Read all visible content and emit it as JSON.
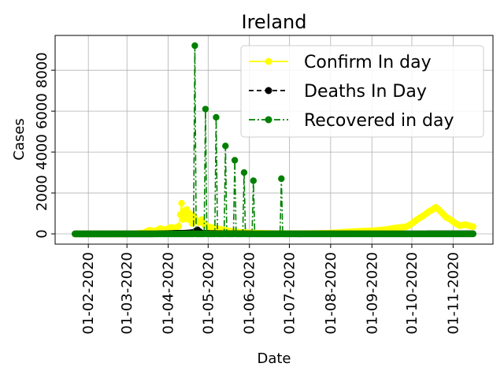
{
  "chart_data": {
    "type": "line",
    "title": "Ireland",
    "xlabel": "Date",
    "ylabel": "Cases",
    "grid": true,
    "legend_position": "top-right",
    "x_ticks": [
      "01-02-2020",
      "01-03-2020",
      "01-04-2020",
      "01-05-2020",
      "01-06-2020",
      "01-07-2020",
      "01-08-2020",
      "01-09-2020",
      "01-10-2020",
      "01-11-2020"
    ],
    "y_ticks": [
      0,
      2000,
      4000,
      6000,
      8000
    ],
    "y_tick_labels": [
      "0",
      "2000",
      "4000",
      "6000",
      "8000"
    ],
    "x_range": [
      "2020-01-22",
      "2020-11-16"
    ],
    "ylim": [
      -500,
      9700
    ],
    "series": [
      {
        "name": "Confirm In day",
        "color": "#ffff00",
        "linestyle": "solid",
        "marker": "circle",
        "points": [
          [
            "2020-01-22",
            0
          ],
          [
            "2020-02-29",
            0
          ],
          [
            "2020-03-05",
            5
          ],
          [
            "2020-03-10",
            20
          ],
          [
            "2020-03-14",
            60
          ],
          [
            "2020-03-18",
            180
          ],
          [
            "2020-03-22",
            120
          ],
          [
            "2020-03-26",
            260
          ],
          [
            "2020-03-30",
            200
          ],
          [
            "2020-04-03",
            320
          ],
          [
            "2020-04-06",
            280
          ],
          [
            "2020-04-09",
            380
          ],
          [
            "2020-04-11",
            1500
          ],
          [
            "2020-04-12",
            700
          ],
          [
            "2020-04-13",
            1100
          ],
          [
            "2020-04-14",
            850
          ],
          [
            "2020-04-15",
            1200
          ],
          [
            "2020-04-16",
            700
          ],
          [
            "2020-04-17",
            1000
          ],
          [
            "2020-04-18",
            780
          ],
          [
            "2020-04-19",
            500
          ],
          [
            "2020-04-20",
            900
          ],
          [
            "2020-04-22",
            650
          ],
          [
            "2020-04-24",
            550
          ],
          [
            "2020-04-26",
            700
          ],
          [
            "2020-04-28",
            450
          ],
          [
            "2020-05-01",
            350
          ],
          [
            "2020-05-04",
            300
          ],
          [
            "2020-05-08",
            250
          ],
          [
            "2020-05-12",
            200
          ],
          [
            "2020-05-16",
            150
          ],
          [
            "2020-05-22",
            100
          ],
          [
            "2020-05-28",
            70
          ],
          [
            "2020-06-05",
            40
          ],
          [
            "2020-06-15",
            20
          ],
          [
            "2020-07-01",
            15
          ],
          [
            "2020-07-20",
            20
          ],
          [
            "2020-08-01",
            40
          ],
          [
            "2020-08-10",
            80
          ],
          [
            "2020-08-20",
            120
          ],
          [
            "2020-09-01",
            150
          ],
          [
            "2020-09-10",
            200
          ],
          [
            "2020-09-20",
            300
          ],
          [
            "2020-09-27",
            350
          ],
          [
            "2020-10-01",
            500
          ],
          [
            "2020-10-05",
            700
          ],
          [
            "2020-10-10",
            900
          ],
          [
            "2020-10-14",
            1100
          ],
          [
            "2020-10-17",
            1200
          ],
          [
            "2020-10-19",
            1300
          ],
          [
            "2020-10-21",
            1200
          ],
          [
            "2020-10-24",
            1000
          ],
          [
            "2020-10-27",
            800
          ],
          [
            "2020-10-30",
            700
          ],
          [
            "2020-11-02",
            550
          ],
          [
            "2020-11-06",
            400
          ],
          [
            "2020-11-10",
            450
          ],
          [
            "2020-11-13",
            400
          ],
          [
            "2020-11-16",
            350
          ]
        ]
      },
      {
        "name": "Deaths In Day",
        "color": "#000000",
        "linestyle": "dashed",
        "marker": "circle",
        "points": [
          [
            "2020-01-22",
            0
          ],
          [
            "2020-03-20",
            0
          ],
          [
            "2020-03-28",
            10
          ],
          [
            "2020-04-05",
            25
          ],
          [
            "2020-04-10",
            35
          ],
          [
            "2020-04-15",
            40
          ],
          [
            "2020-04-20",
            70
          ],
          [
            "2020-04-23",
            200
          ],
          [
            "2020-04-26",
            30
          ],
          [
            "2020-05-01",
            25
          ],
          [
            "2020-05-10",
            15
          ],
          [
            "2020-05-20",
            10
          ],
          [
            "2020-06-01",
            5
          ],
          [
            "2020-07-01",
            2
          ],
          [
            "2020-09-01",
            2
          ],
          [
            "2020-10-15",
            5
          ],
          [
            "2020-11-16",
            5
          ]
        ]
      },
      {
        "name": "Recovered in day",
        "color": "#008000",
        "linestyle": "dashdot",
        "marker": "circle",
        "points": [
          [
            "2020-01-22",
            0
          ],
          [
            "2020-04-20",
            0
          ],
          [
            "2020-04-21",
            9200
          ],
          [
            "2020-04-22",
            0
          ],
          [
            "2020-04-28",
            0
          ],
          [
            "2020-04-29",
            6100
          ],
          [
            "2020-04-30",
            0
          ],
          [
            "2020-05-06",
            0
          ],
          [
            "2020-05-07",
            5700
          ],
          [
            "2020-05-08",
            0
          ],
          [
            "2020-05-13",
            0
          ],
          [
            "2020-05-14",
            4300
          ],
          [
            "2020-05-15",
            0
          ],
          [
            "2020-05-20",
            0
          ],
          [
            "2020-05-21",
            3600
          ],
          [
            "2020-05-22",
            0
          ],
          [
            "2020-05-27",
            0
          ],
          [
            "2020-05-28",
            3000
          ],
          [
            "2020-05-29",
            0
          ],
          [
            "2020-06-03",
            0
          ],
          [
            "2020-06-04",
            2600
          ],
          [
            "2020-06-05",
            0
          ],
          [
            "2020-06-24",
            0
          ],
          [
            "2020-06-25",
            2700
          ],
          [
            "2020-06-26",
            0
          ],
          [
            "2020-11-16",
            0
          ]
        ]
      }
    ]
  }
}
